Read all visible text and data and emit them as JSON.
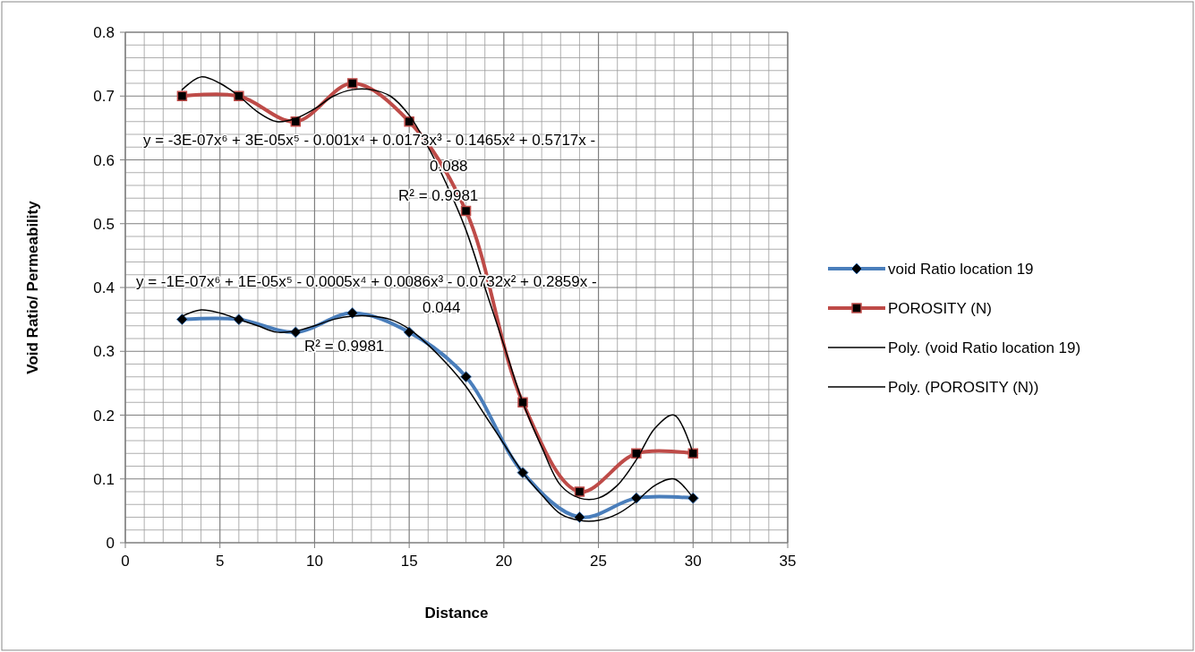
{
  "chart_data": {
    "type": "line",
    "xlabel": "Distance",
    "ylabel": "Void Ratio/ Permeability",
    "x": [
      3,
      6,
      9,
      12,
      15,
      18,
      21,
      24,
      27,
      30
    ],
    "xlim": [
      0,
      35
    ],
    "xticks": [
      0,
      5,
      10,
      15,
      20,
      25,
      30,
      35
    ],
    "ylim": [
      0,
      0.8
    ],
    "yticks": [
      0,
      0.1,
      0.2,
      0.3,
      0.4,
      0.5,
      0.6,
      0.7,
      0.8
    ],
    "grid": true,
    "legend": "right",
    "series": [
      {
        "name": "void Ratio location 19",
        "color": "#4a7ebb",
        "marker": "diamond",
        "values": [
          0.35,
          0.35,
          0.33,
          0.36,
          0.33,
          0.26,
          0.11,
          0.04,
          0.07,
          0.07
        ]
      },
      {
        "name": "POROSITY (N)",
        "color": "#be4b48",
        "marker": "square",
        "values": [
          0.7,
          0.7,
          0.66,
          0.72,
          0.66,
          0.52,
          0.22,
          0.08,
          0.14,
          0.14
        ]
      },
      {
        "name": "Poly. (void Ratio location 19)",
        "color": "#000000",
        "marker": "none",
        "x": [
          3,
          4,
          5,
          6,
          7,
          8,
          9,
          10,
          11,
          12,
          13,
          14,
          15,
          16,
          17,
          18,
          19,
          20,
          21,
          22,
          23,
          24,
          25,
          26,
          27,
          28,
          29,
          30
        ],
        "values": [
          0.355,
          0.365,
          0.36,
          0.35,
          0.34,
          0.33,
          0.332,
          0.34,
          0.35,
          0.355,
          0.355,
          0.35,
          0.335,
          0.31,
          0.28,
          0.245,
          0.2,
          0.155,
          0.11,
          0.075,
          0.045,
          0.035,
          0.035,
          0.045,
          0.065,
          0.09,
          0.1,
          0.07
        ]
      },
      {
        "name": "Poly. (POROSITY (N))",
        "color": "#000000",
        "marker": "none",
        "x": [
          3,
          4,
          5,
          6,
          7,
          8,
          9,
          10,
          11,
          12,
          13,
          14,
          15,
          16,
          17,
          18,
          19,
          20,
          21,
          22,
          23,
          24,
          25,
          26,
          27,
          28,
          29,
          30
        ],
        "values": [
          0.71,
          0.73,
          0.72,
          0.7,
          0.675,
          0.66,
          0.665,
          0.68,
          0.7,
          0.71,
          0.71,
          0.7,
          0.67,
          0.62,
          0.56,
          0.49,
          0.4,
          0.31,
          0.22,
          0.15,
          0.09,
          0.07,
          0.07,
          0.09,
          0.13,
          0.18,
          0.2,
          0.14
        ]
      }
    ],
    "annotations": [
      "y = -3E-07x⁶ + 3E-05x⁵ - 0.001x⁴ + 0.0173x³ - 0.1465x² + 0.5717x - 0.088",
      "R² = 0.9981",
      "y = -1E-07x⁶ + 1E-05x⁵ - 0.0005x⁴ + 0.0086x³ - 0.0732x² + 0.2859x - 0.044",
      "R² = 0.9981"
    ]
  }
}
